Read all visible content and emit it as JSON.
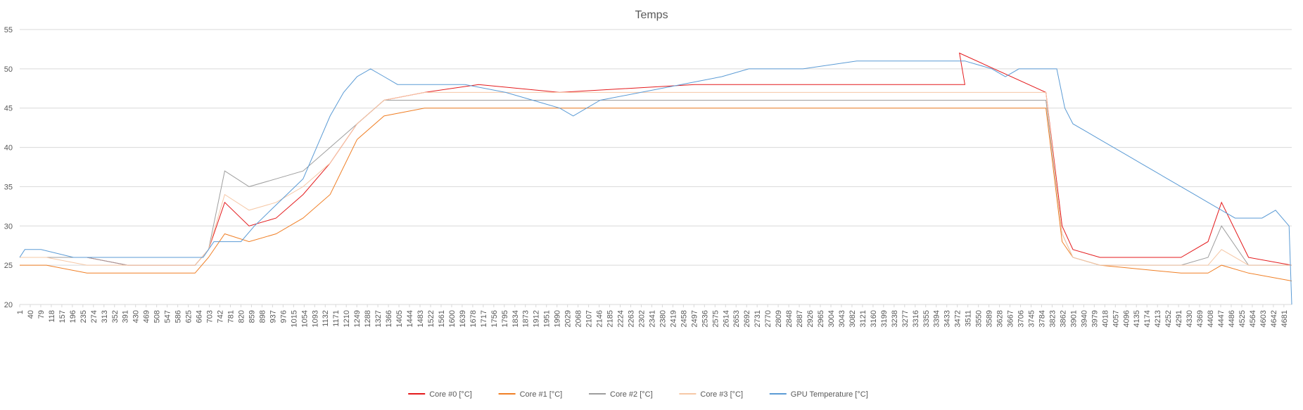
{
  "chart_data": {
    "type": "line",
    "title": "Temps",
    "xlabel": "",
    "ylabel": "",
    "ylim": [
      20,
      55
    ],
    "yticks": [
      20,
      25,
      30,
      35,
      40,
      45,
      50,
      55
    ],
    "xlim": [
      1,
      4710
    ],
    "xticks": [
      1,
      40,
      79,
      118,
      157,
      196,
      235,
      274,
      313,
      352,
      391,
      430,
      469,
      508,
      547,
      586,
      625,
      664,
      703,
      742,
      781,
      820,
      859,
      898,
      937,
      976,
      1015,
      1054,
      1093,
      1132,
      1171,
      1210,
      1249,
      1288,
      1327,
      1366,
      1405,
      1444,
      1483,
      1522,
      1561,
      1600,
      1639,
      1678,
      1717,
      1756,
      1795,
      1834,
      1873,
      1912,
      1951,
      1990,
      2029,
      2068,
      2107,
      2146,
      2185,
      2224,
      2263,
      2302,
      2341,
      2380,
      2419,
      2458,
      2497,
      2536,
      2575,
      2614,
      2653,
      2692,
      2731,
      2770,
      2809,
      2848,
      2887,
      2926,
      2965,
      3004,
      3043,
      3082,
      3121,
      3160,
      3199,
      3238,
      3277,
      3316,
      3355,
      3394,
      3433,
      3472,
      3511,
      3550,
      3589,
      3628,
      3667,
      3706,
      3745,
      3784,
      3823,
      3862,
      3901,
      3940,
      3979,
      4018,
      4057,
      4096,
      4135,
      4174,
      4213,
      4252,
      4291,
      4330,
      4369,
      4408,
      4447,
      4486,
      4525,
      4564,
      4603,
      4642,
      4681
    ],
    "grid": true,
    "legend_position": "bottom",
    "series": [
      {
        "name": "Core #0 [°C]",
        "color": "#e41a1c",
        "x": [
          1,
          100,
          250,
          400,
          550,
          650,
          700,
          760,
          850,
          950,
          1050,
          1150,
          1250,
          1350,
          1500,
          1700,
          2000,
          2500,
          3000,
          3500,
          3480,
          3800,
          3860,
          3900,
          4000,
          4300,
          4400,
          4450,
          4550,
          4710
        ],
        "y": [
          26,
          26,
          26,
          25,
          25,
          25,
          27,
          33,
          30,
          31,
          34,
          38,
          43,
          46,
          47,
          48,
          47,
          48,
          48,
          48,
          52,
          47,
          30,
          27,
          26,
          26,
          28,
          33,
          26,
          25
        ]
      },
      {
        "name": "Core #1 [°C]",
        "color": "#f07f25",
        "x": [
          1,
          100,
          250,
          400,
          550,
          650,
          700,
          760,
          850,
          950,
          1050,
          1150,
          1250,
          1350,
          1500,
          1700,
          2000,
          2500,
          3000,
          3500,
          3800,
          3860,
          3900,
          4000,
          4300,
          4400,
          4450,
          4550,
          4710
        ],
        "y": [
          25,
          25,
          24,
          24,
          24,
          24,
          26,
          29,
          28,
          29,
          31,
          34,
          41,
          44,
          45,
          45,
          45,
          45,
          45,
          45,
          45,
          28,
          26,
          25,
          24,
          24,
          25,
          24,
          23
        ]
      },
      {
        "name": "Core #2 [°C]",
        "color": "#9e9e9e",
        "x": [
          1,
          100,
          250,
          400,
          550,
          650,
          700,
          760,
          850,
          950,
          1050,
          1150,
          1250,
          1350,
          1500,
          1700,
          2000,
          2500,
          3000,
          3500,
          3800,
          3860,
          3900,
          4000,
          4300,
          4400,
          4450,
          4550,
          4710
        ],
        "y": [
          26,
          26,
          26,
          25,
          25,
          25,
          27,
          37,
          35,
          36,
          37,
          40,
          43,
          46,
          46,
          46,
          46,
          46,
          46,
          46,
          46,
          29,
          26,
          25,
          25,
          26,
          30,
          25,
          25
        ]
      },
      {
        "name": "Core #3 [°C]",
        "color": "#f6c8a6",
        "x": [
          1,
          100,
          250,
          400,
          550,
          650,
          700,
          760,
          850,
          950,
          1050,
          1150,
          1250,
          1350,
          1500,
          1700,
          2000,
          2500,
          3000,
          3500,
          3800,
          3860,
          3900,
          4000,
          4300,
          4400,
          4450,
          4550,
          4710
        ],
        "y": [
          26,
          26,
          25,
          25,
          25,
          25,
          27,
          34,
          32,
          33,
          35,
          38,
          43,
          46,
          47,
          47,
          47,
          47,
          47,
          47,
          47,
          29,
          26,
          25,
          25,
          25,
          27,
          25,
          25
        ]
      },
      {
        "name": "GPU Temperature [°C]",
        "color": "#5b9bd5",
        "x": [
          1,
          20,
          80,
          200,
          400,
          600,
          680,
          720,
          820,
          870,
          930,
          990,
          1050,
          1100,
          1150,
          1200,
          1250,
          1300,
          1350,
          1400,
          1500,
          1650,
          1800,
          1900,
          2000,
          2050,
          2150,
          2300,
          2450,
          2600,
          2700,
          2900,
          3100,
          3300,
          3500,
          3600,
          3650,
          3700,
          3840,
          3870,
          3900,
          3950,
          4000,
          4050,
          4100,
          4150,
          4200,
          4250,
          4300,
          4350,
          4400,
          4450,
          4500,
          4550,
          4600,
          4650,
          4700,
          4710
        ],
        "y": [
          26,
          27,
          27,
          26,
          26,
          26,
          26,
          28,
          28,
          30,
          32,
          34,
          36,
          40,
          44,
          47,
          49,
          50,
          49,
          48,
          48,
          48,
          47,
          46,
          45,
          44,
          46,
          47,
          48,
          49,
          50,
          50,
          51,
          51,
          51,
          50,
          49,
          50,
          50,
          45,
          43,
          42,
          41,
          40,
          39,
          38,
          37,
          36,
          35,
          34,
          33,
          32,
          31,
          31,
          31,
          32,
          30,
          20
        ]
      }
    ]
  }
}
